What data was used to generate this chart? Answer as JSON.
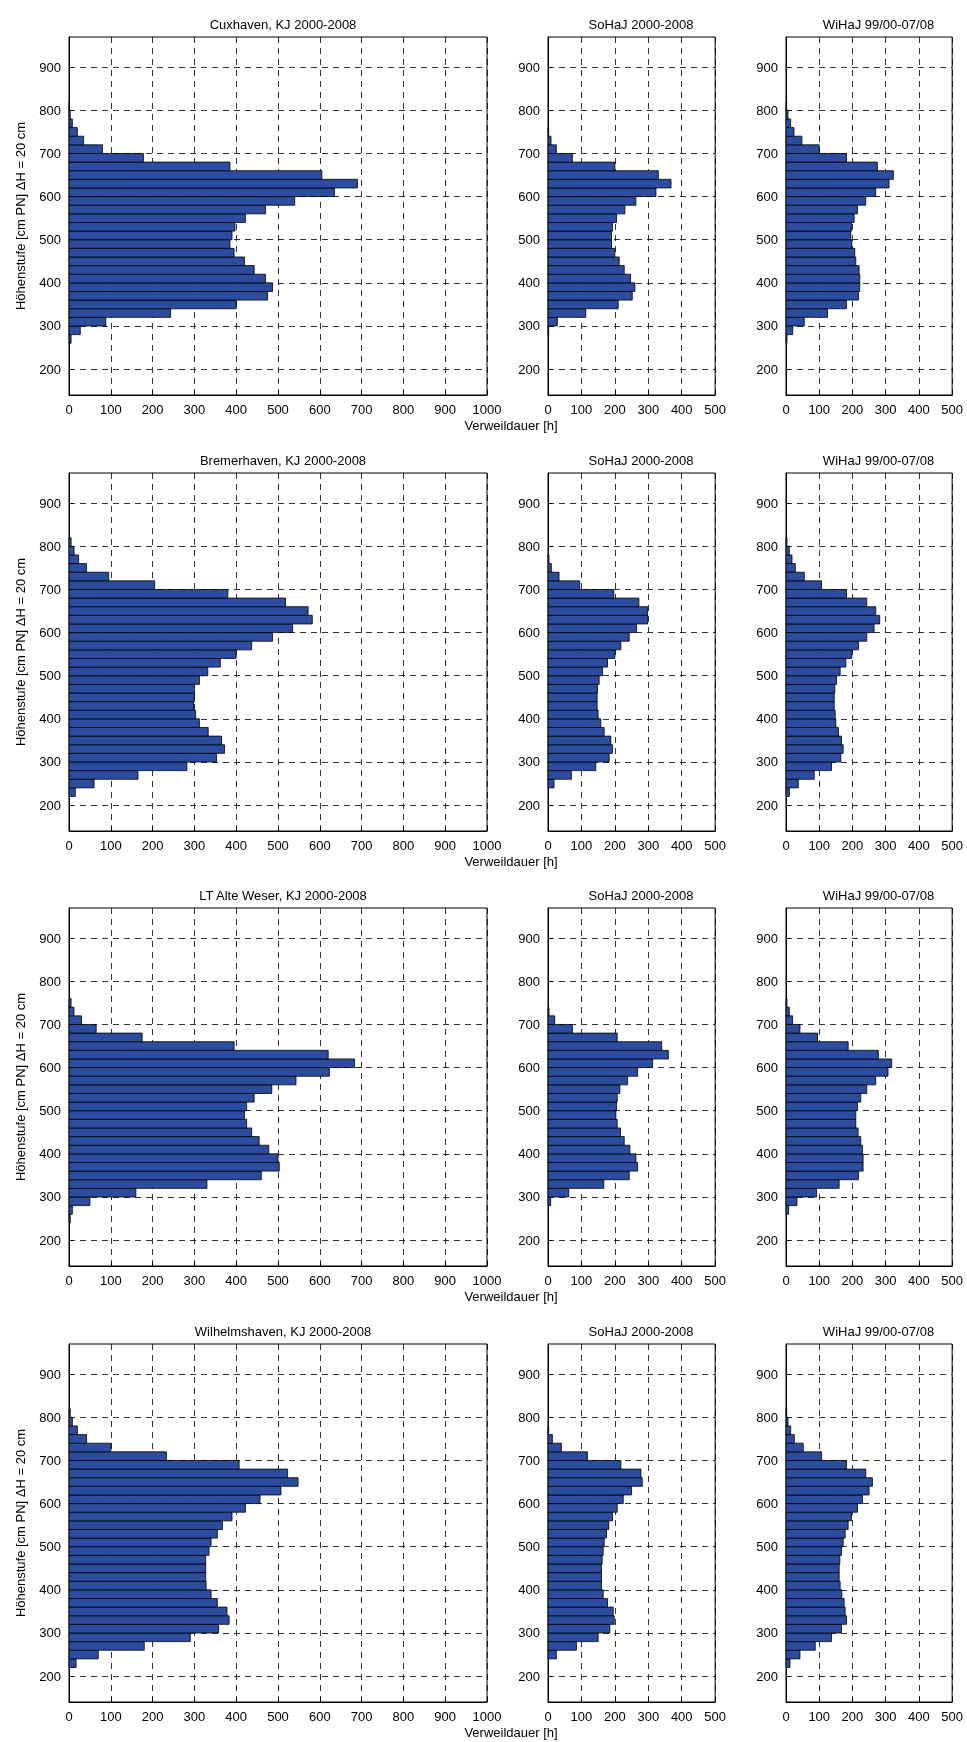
{
  "chart_data": [
    {
      "type": "histogram",
      "orientation": "horizontal",
      "title": "Cuxhaven, KJ 2000-2008",
      "xlabel": "Verweildauer [h]",
      "ylabel": "Höhenstufe [cm PN] ΔH = 20 cm",
      "color": "#2c4ca0",
      "grid": true,
      "xlim": [
        0,
        1000
      ],
      "xticks": [
        0,
        100,
        200,
        300,
        400,
        500,
        600,
        700,
        800,
        900,
        1000
      ],
      "ylim": [
        140,
        970
      ],
      "yticks": [
        200,
        300,
        400,
        500,
        600,
        700,
        800,
        900
      ],
      "bins": [
        260,
        280,
        300,
        320,
        340,
        360,
        380,
        400,
        420,
        440,
        460,
        480,
        500,
        520,
        540,
        560,
        580,
        600,
        620,
        640,
        660,
        680,
        700,
        720,
        740,
        760,
        780,
        800,
        820
      ],
      "values": [
        5,
        27,
        88,
        243,
        400,
        475,
        487,
        470,
        443,
        420,
        395,
        385,
        390,
        397,
        422,
        470,
        540,
        635,
        690,
        605,
        385,
        178,
        80,
        35,
        20,
        8,
        3,
        1
      ]
    },
    {
      "type": "histogram",
      "orientation": "horizontal",
      "title": "SoHaJ 2000-2008",
      "color": "#2c4ca0",
      "grid": true,
      "xlim": [
        0,
        500
      ],
      "xticks": [
        0,
        100,
        200,
        300,
        400,
        500
      ],
      "ylim": [
        140,
        970
      ],
      "yticks": [
        200,
        300,
        400,
        500,
        600,
        700,
        800,
        900
      ],
      "bins": [
        280,
        300,
        320,
        340,
        360,
        380,
        400,
        420,
        440,
        460,
        480,
        500,
        520,
        540,
        560,
        580,
        600,
        620,
        640,
        660,
        680,
        700,
        720,
        740,
        760
      ],
      "values": [
        2,
        28,
        113,
        210,
        252,
        260,
        247,
        228,
        213,
        200,
        190,
        190,
        193,
        205,
        230,
        263,
        323,
        368,
        330,
        200,
        73,
        25,
        9,
        2
      ]
    },
    {
      "type": "histogram",
      "orientation": "horizontal",
      "title": "WiHaJ 99/00-07/08",
      "color": "#2c4ca0",
      "grid": true,
      "xlim": [
        0,
        500
      ],
      "xticks": [
        0,
        100,
        200,
        300,
        400,
        500
      ],
      "ylim": [
        140,
        970
      ],
      "yticks": [
        200,
        300,
        400,
        500,
        600,
        700,
        800,
        900
      ],
      "bins": [
        260,
        280,
        300,
        320,
        340,
        360,
        380,
        400,
        420,
        440,
        460,
        480,
        500,
        520,
        540,
        560,
        580,
        600,
        620,
        640,
        660,
        680,
        700,
        720,
        740,
        760,
        780,
        800,
        820
      ],
      "values": [
        3,
        20,
        55,
        125,
        182,
        218,
        222,
        222,
        220,
        210,
        207,
        198,
        195,
        197,
        205,
        215,
        240,
        270,
        310,
        323,
        275,
        182,
        100,
        48,
        24,
        14,
        6,
        2
      ]
    },
    {
      "type": "histogram",
      "orientation": "horizontal",
      "title": "Bremerhaven, KJ 2000-2008",
      "xlabel": "Verweildauer [h]",
      "ylabel": "Höhenstufe [cm PN] ΔH = 20 cm",
      "color": "#2c4ca0",
      "grid": true,
      "xlim": [
        0,
        1000
      ],
      "xticks": [
        0,
        100,
        200,
        300,
        400,
        500,
        600,
        700,
        800,
        900,
        1000
      ],
      "ylim": [
        140,
        970
      ],
      "yticks": [
        200,
        300,
        400,
        500,
        600,
        700,
        800,
        900
      ],
      "bins": [
        220,
        240,
        260,
        280,
        300,
        320,
        340,
        360,
        380,
        400,
        420,
        440,
        460,
        480,
        500,
        520,
        540,
        560,
        580,
        600,
        620,
        640,
        660,
        680,
        700,
        720,
        740,
        760,
        780,
        800,
        820
      ],
      "values": [
        15,
        60,
        165,
        282,
        353,
        372,
        365,
        333,
        312,
        303,
        298,
        300,
        300,
        312,
        332,
        362,
        400,
        437,
        487,
        535,
        582,
        572,
        518,
        380,
        205,
        95,
        42,
        23,
        12,
        5
      ]
    },
    {
      "type": "histogram",
      "orientation": "horizontal",
      "title": "SoHaJ 2000-2008",
      "color": "#2c4ca0",
      "grid": true,
      "xlim": [
        0,
        500
      ],
      "xticks": [
        0,
        100,
        200,
        300,
        400,
        500
      ],
      "ylim": [
        140,
        970
      ],
      "yticks": [
        200,
        300,
        400,
        500,
        600,
        700,
        800,
        900
      ],
      "bins": [
        240,
        260,
        280,
        300,
        320,
        340,
        360,
        380,
        400,
        420,
        440,
        460,
        480,
        500,
        520,
        540,
        560,
        580,
        600,
        620,
        640,
        660,
        680,
        700,
        720,
        740,
        760,
        780
      ],
      "values": [
        18,
        70,
        143,
        183,
        193,
        188,
        168,
        158,
        150,
        147,
        147,
        148,
        153,
        163,
        178,
        200,
        218,
        243,
        265,
        298,
        298,
        272,
        197,
        95,
        33,
        10,
        3
      ]
    },
    {
      "type": "histogram",
      "orientation": "horizontal",
      "title": "WiHaJ 99/00-07/08",
      "color": "#2c4ca0",
      "grid": true,
      "xlim": [
        0,
        500
      ],
      "xticks": [
        0,
        100,
        200,
        300,
        400,
        500
      ],
      "ylim": [
        140,
        970
      ],
      "yticks": [
        200,
        300,
        400,
        500,
        600,
        700,
        800,
        900
      ],
      "bins": [
        220,
        240,
        260,
        280,
        300,
        320,
        340,
        360,
        380,
        400,
        420,
        440,
        460,
        480,
        500,
        520,
        540,
        560,
        580,
        600,
        620,
        640,
        660,
        680,
        700,
        720,
        740,
        760,
        780,
        800,
        820
      ],
      "values": [
        10,
        37,
        85,
        137,
        165,
        172,
        167,
        158,
        150,
        148,
        145,
        145,
        147,
        152,
        163,
        180,
        198,
        218,
        243,
        265,
        282,
        270,
        243,
        182,
        107,
        55,
        28,
        18,
        10,
        3
      ]
    },
    {
      "type": "histogram",
      "orientation": "horizontal",
      "title": "LT Alte Weser, KJ 2000-2008",
      "xlabel": "Verweildauer [h]",
      "ylabel": "Höhenstufe [cm PN] ΔH = 20 cm",
      "color": "#2c4ca0",
      "grid": true,
      "xlim": [
        0,
        1000
      ],
      "xticks": [
        0,
        100,
        200,
        300,
        400,
        500,
        600,
        700,
        800,
        900,
        1000
      ],
      "ylim": [
        140,
        970
      ],
      "yticks": [
        200,
        300,
        400,
        500,
        600,
        700,
        800,
        900
      ],
      "bins": [
        240,
        260,
        280,
        300,
        320,
        340,
        360,
        380,
        400,
        420,
        440,
        460,
        480,
        500,
        520,
        540,
        560,
        580,
        600,
        620,
        640,
        660,
        680,
        700,
        720,
        740,
        760
      ],
      "values": [
        3,
        8,
        50,
        160,
        330,
        460,
        503,
        500,
        478,
        455,
        437,
        425,
        420,
        425,
        443,
        485,
        543,
        623,
        683,
        620,
        395,
        175,
        65,
        30,
        12,
        5
      ]
    },
    {
      "type": "histogram",
      "orientation": "horizontal",
      "title": "SoHaJ 2000-2008",
      "color": "#2c4ca0",
      "grid": true,
      "xlim": [
        0,
        500
      ],
      "xticks": [
        0,
        100,
        200,
        300,
        400,
        500
      ],
      "ylim": [
        140,
        970
      ],
      "yticks": [
        200,
        300,
        400,
        500,
        600,
        700,
        800,
        900
      ],
      "bins": [
        280,
        300,
        320,
        340,
        360,
        380,
        400,
        420,
        440,
        460,
        480,
        500,
        520,
        540,
        560,
        580,
        600,
        620,
        640,
        660,
        680,
        700,
        720,
        740
      ],
      "values": [
        8,
        62,
        167,
        243,
        268,
        263,
        245,
        228,
        217,
        207,
        203,
        205,
        207,
        215,
        238,
        268,
        313,
        360,
        340,
        207,
        73,
        20,
        3
      ]
    },
    {
      "type": "histogram",
      "orientation": "horizontal",
      "title": "WiHaJ 99/00-07/08",
      "color": "#2c4ca0",
      "grid": true,
      "xlim": [
        0,
        500
      ],
      "xticks": [
        0,
        100,
        200,
        300,
        400,
        500
      ],
      "ylim": [
        140,
        970
      ],
      "yticks": [
        200,
        300,
        400,
        500,
        600,
        700,
        800,
        900
      ],
      "bins": [
        260,
        280,
        300,
        320,
        340,
        360,
        380,
        400,
        420,
        440,
        460,
        480,
        500,
        520,
        540,
        560,
        580,
        600,
        620,
        640,
        660,
        680,
        700,
        720,
        740,
        760
      ],
      "values": [
        8,
        33,
        92,
        160,
        218,
        232,
        232,
        230,
        225,
        217,
        210,
        210,
        215,
        225,
        243,
        270,
        307,
        318,
        278,
        187,
        95,
        42,
        20,
        10,
        3
      ]
    },
    {
      "type": "histogram",
      "orientation": "horizontal",
      "title": "Wilhelmshaven, KJ 2000-2008",
      "xlabel": "Verweildauer [h]",
      "ylabel": "Höhenstufe [cm PN] ΔH = 20 cm",
      "color": "#2c4ca0",
      "grid": true,
      "xlim": [
        0,
        1000
      ],
      "xticks": [
        0,
        100,
        200,
        300,
        400,
        500,
        600,
        700,
        800,
        900,
        1000
      ],
      "ylim": [
        140,
        970
      ],
      "yticks": [
        200,
        300,
        400,
        500,
        600,
        700,
        800,
        900
      ],
      "bins": [
        220,
        240,
        260,
        280,
        300,
        320,
        340,
        360,
        380,
        400,
        420,
        440,
        460,
        480,
        500,
        520,
        540,
        560,
        580,
        600,
        620,
        640,
        660,
        680,
        700,
        720,
        740,
        760,
        780,
        800,
        820
      ],
      "values": [
        17,
        70,
        180,
        290,
        358,
        383,
        378,
        355,
        340,
        328,
        327,
        327,
        327,
        335,
        340,
        355,
        367,
        390,
        422,
        457,
        507,
        548,
        523,
        407,
        233,
        100,
        42,
        20,
        8,
        3
      ]
    },
    {
      "type": "histogram",
      "orientation": "horizontal",
      "title": "SoHaJ 2000-2008",
      "color": "#2c4ca0",
      "grid": true,
      "xlim": [
        0,
        500
      ],
      "xticks": [
        0,
        100,
        200,
        300,
        400,
        500
      ],
      "ylim": [
        140,
        970
      ],
      "yticks": [
        200,
        300,
        400,
        500,
        600,
        700,
        800,
        900
      ],
      "bins": [
        240,
        260,
        280,
        300,
        320,
        340,
        360,
        380,
        400,
        420,
        440,
        460,
        480,
        500,
        520,
        540,
        560,
        580,
        600,
        620,
        640,
        660,
        680,
        700,
        720,
        740,
        760,
        780
      ],
      "values": [
        25,
        85,
        150,
        185,
        198,
        195,
        178,
        165,
        160,
        160,
        160,
        162,
        165,
        168,
        175,
        182,
        193,
        207,
        225,
        250,
        282,
        278,
        218,
        118,
        40,
        13,
        2
      ]
    },
    {
      "type": "histogram",
      "orientation": "horizontal",
      "title": "WiHaJ 99/00-07/08",
      "color": "#2c4ca0",
      "grid": true,
      "xlim": [
        0,
        500
      ],
      "xticks": [
        0,
        100,
        200,
        300,
        400,
        500
      ],
      "ylim": [
        140,
        970
      ],
      "yticks": [
        200,
        300,
        400,
        500,
        600,
        700,
        800,
        900
      ],
      "bins": [
        220,
        240,
        260,
        280,
        300,
        320,
        340,
        360,
        380,
        400,
        420,
        440,
        460,
        480,
        500,
        520,
        540,
        560,
        580,
        600,
        620,
        640,
        660,
        680,
        700,
        720,
        740,
        760,
        780,
        800,
        820
      ],
      "values": [
        12,
        42,
        88,
        137,
        167,
        182,
        178,
        175,
        168,
        163,
        160,
        160,
        162,
        167,
        172,
        178,
        187,
        197,
        215,
        230,
        250,
        260,
        240,
        182,
        107,
        52,
        25,
        14,
        6,
        2
      ]
    }
  ]
}
